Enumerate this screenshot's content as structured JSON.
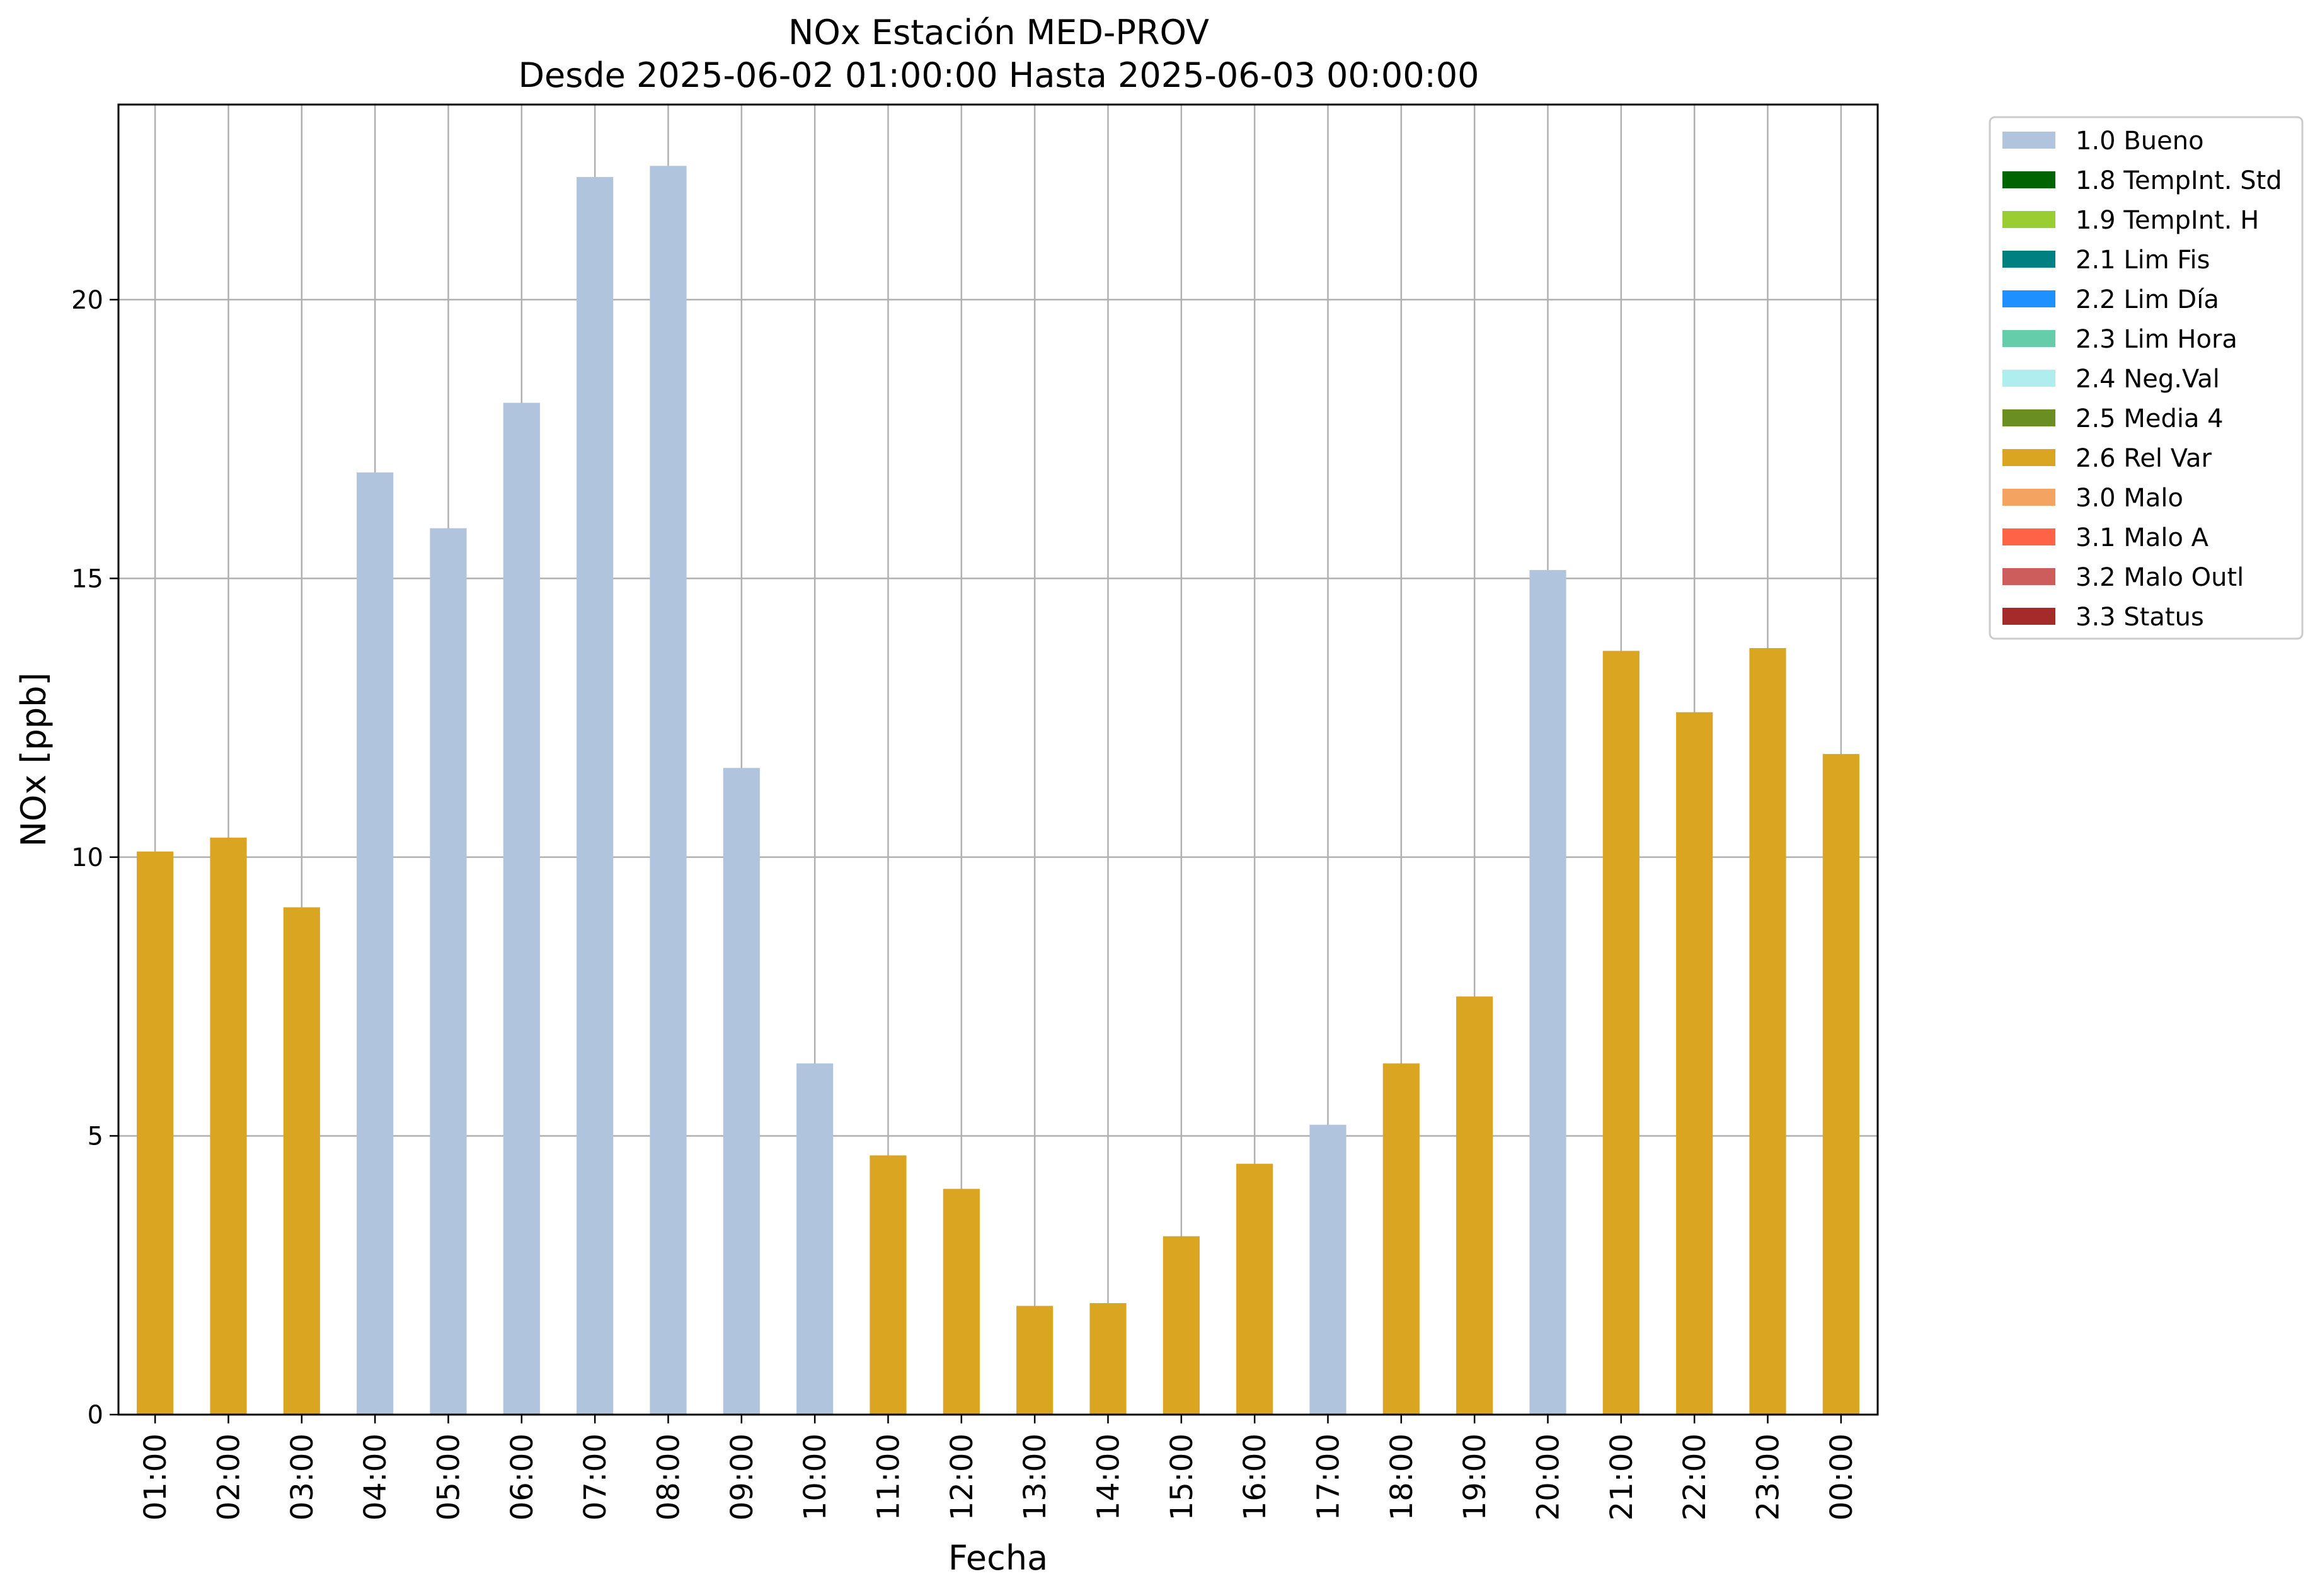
{
  "chart_data": {
    "type": "bar",
    "title": "NOx Estación MED-PROV",
    "subtitle": "Desde 2025-06-02 01:00:00 Hasta 2025-06-03 00:00:00",
    "xlabel": "Fecha",
    "ylabel": "NOx [ppb]",
    "ylim": [
      0,
      23.5
    ],
    "yticks": [
      0,
      5,
      10,
      15,
      20
    ],
    "grid": true,
    "legend_position": "outside-top-right",
    "categories": [
      "01:00",
      "02:00",
      "03:00",
      "04:00",
      "05:00",
      "06:00",
      "07:00",
      "08:00",
      "09:00",
      "10:00",
      "11:00",
      "12:00",
      "13:00",
      "14:00",
      "15:00",
      "16:00",
      "17:00",
      "18:00",
      "19:00",
      "20:00",
      "21:00",
      "22:00",
      "23:00",
      "00:00"
    ],
    "values": [
      10.1,
      10.35,
      9.1,
      16.9,
      15.9,
      18.15,
      22.2,
      22.4,
      11.6,
      6.3,
      4.65,
      4.05,
      1.95,
      2.0,
      3.2,
      4.5,
      5.2,
      6.3,
      7.5,
      15.15,
      13.7,
      12.6,
      13.75,
      11.85
    ],
    "flags": [
      "2.6 Rel Var",
      "2.6 Rel Var",
      "2.6 Rel Var",
      "1.0 Bueno",
      "1.0 Bueno",
      "1.0 Bueno",
      "1.0 Bueno",
      "1.0 Bueno",
      "1.0 Bueno",
      "1.0 Bueno",
      "2.6 Rel Var",
      "2.6 Rel Var",
      "2.6 Rel Var",
      "2.6 Rel Var",
      "2.6 Rel Var",
      "2.6 Rel Var",
      "1.0 Bueno",
      "2.6 Rel Var",
      "2.6 Rel Var",
      "1.0 Bueno",
      "2.6 Rel Var",
      "2.6 Rel Var",
      "2.6 Rel Var",
      "2.6 Rel Var"
    ],
    "legend": [
      {
        "label": "1.0 Bueno",
        "color": "#b0c4de"
      },
      {
        "label": "1.8 TempInt. Std",
        "color": "#006400"
      },
      {
        "label": "1.9 TempInt. H",
        "color": "#9acd32"
      },
      {
        "label": "2.1 Lim Fis",
        "color": "#008080"
      },
      {
        "label": "2.2 Lim Día",
        "color": "#1e90ff"
      },
      {
        "label": "2.3 Lim Hora",
        "color": "#66cdaa"
      },
      {
        "label": "2.4 Neg.Val",
        "color": "#afeeee"
      },
      {
        "label": "2.5 Media 4",
        "color": "#6b8e23"
      },
      {
        "label": "2.6 Rel Var",
        "color": "#daa520"
      },
      {
        "label": "3.0 Malo",
        "color": "#f4a460"
      },
      {
        "label": "3.1 Malo A",
        "color": "#ff6347"
      },
      {
        "label": "3.2 Malo Outl",
        "color": "#cd5c5c"
      },
      {
        "label": "3.3 Status",
        "color": "#a52a2a"
      }
    ]
  }
}
